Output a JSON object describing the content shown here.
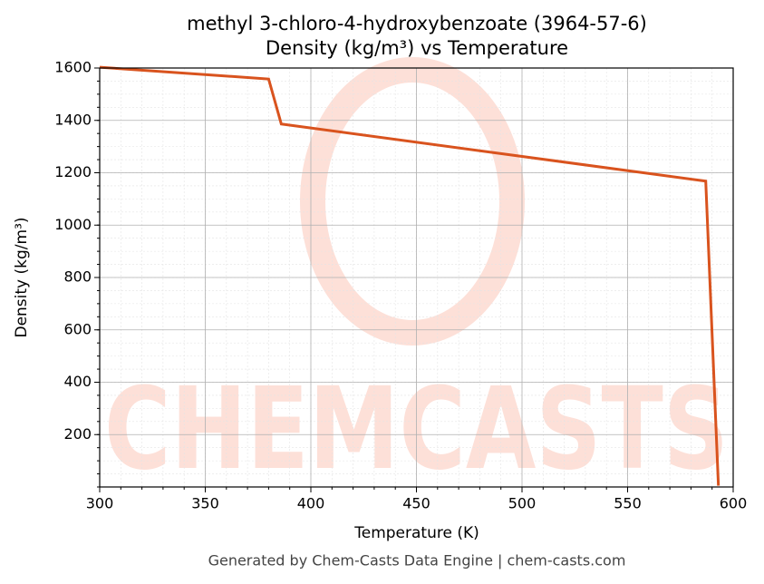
{
  "chart_data": {
    "type": "line",
    "title": "methyl 3-chloro-4-hydroxybenzoate (3964-57-6)",
    "subtitle": "Density (kg/m³) vs Temperature",
    "x_label": "Temperature (K)",
    "y_label": "Density (kg/m³)",
    "footer": "Generated by Chem-Casts Data Engine | chem-casts.com",
    "watermark": "CHEMCASTS",
    "x": [
      300,
      380,
      386,
      587,
      593
    ],
    "series": [
      {
        "name": "Density",
        "color": "#d9531e",
        "values": [
          1603,
          1558,
          1386,
          1168,
          5
        ]
      }
    ],
    "xlim": [
      300,
      600
    ],
    "xticks": [
      300,
      350,
      400,
      450,
      500,
      550,
      600
    ],
    "ylim": [
      0,
      1600
    ],
    "yticks": [
      200,
      400,
      600,
      800,
      1000,
      1200,
      1400,
      1600
    ],
    "grid": true,
    "minor_grid": true
  }
}
